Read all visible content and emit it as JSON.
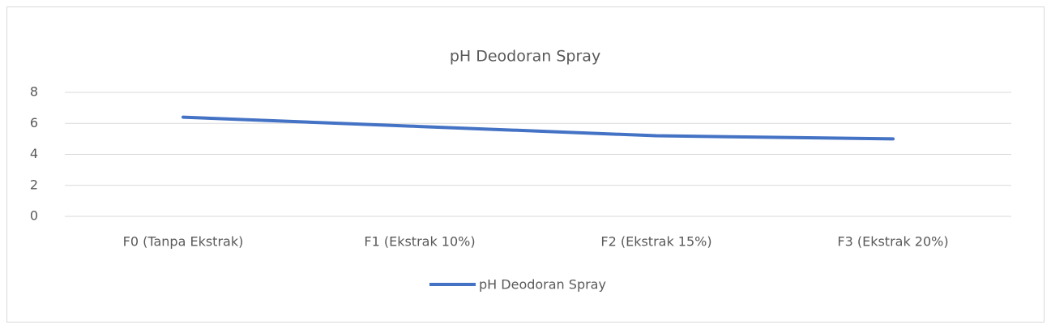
{
  "chart_data": {
    "type": "line",
    "title": "pH Deodoran Spray",
    "categories": [
      "F0 (Tanpa Ekstrak)",
      "F1 (Ekstrak 10%)",
      "F2 (Ekstrak 15%)",
      "F3 (Ekstrak 20%)"
    ],
    "series": [
      {
        "name": "pH Deodoran Spray",
        "color": "#4472c4",
        "values": [
          6.4,
          5.8,
          5.2,
          5.0
        ]
      }
    ],
    "ylim": [
      0,
      8
    ],
    "yticks": [
      0,
      2,
      4,
      6,
      8
    ],
    "grid": true,
    "legend": "bottom"
  }
}
